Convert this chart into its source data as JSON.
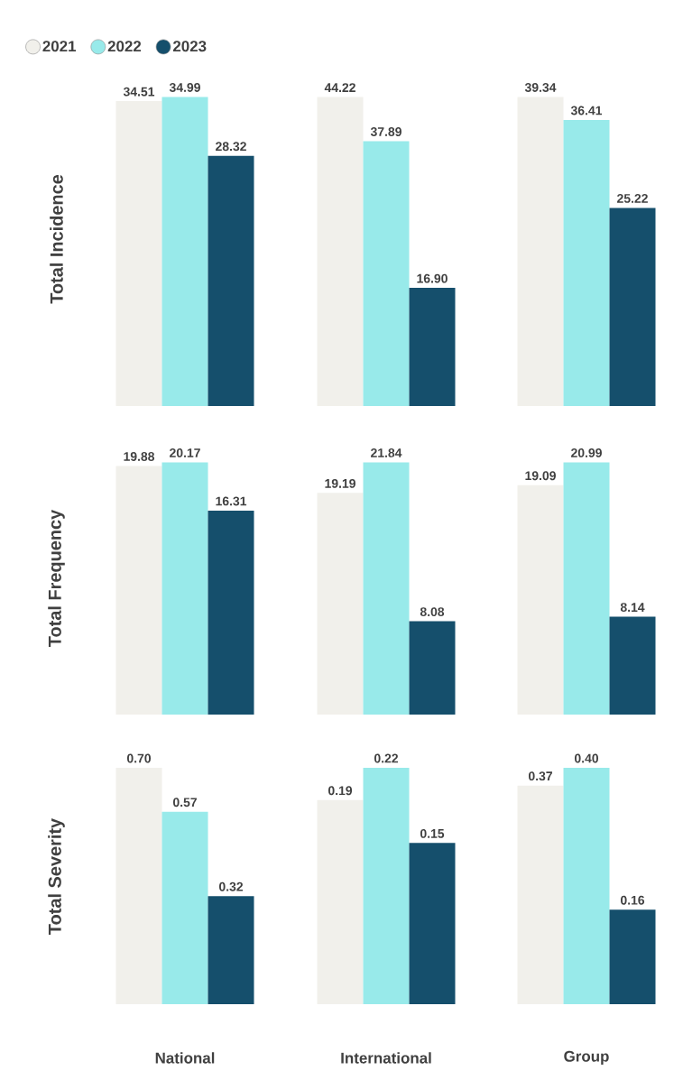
{
  "chart_data": [
    {
      "type": "bar",
      "categories": [
        null
      ],
      "ylabel": "Total Incidence",
      "legend": "top left",
      "series": [
        {
          "name": "2021",
          "color": "#f1f0eb",
          "values": [
            34.51
          ],
          "value_labels": [
            "34.51"
          ]
        },
        {
          "name": "2022",
          "color": "#98eaea",
          "values": [
            34.99
          ],
          "value_labels": [
            "34.99"
          ]
        },
        {
          "name": "2023",
          "color": "#154f6c",
          "values": [
            28.32
          ],
          "value_labels": [
            "28.32"
          ]
        }
      ]
    },
    {
      "type": "bar",
      "categories": [
        null
      ],
      "series": [
        {
          "color": "#f1f0eb",
          "values": [
            44.22
          ],
          "value_labels": [
            "44.22"
          ]
        },
        {
          "color": "#98eaea",
          "values": [
            37.89
          ],
          "value_labels": [
            "37.89"
          ]
        },
        {
          "color": "#154f6c",
          "values": [
            16.9
          ],
          "value_labels": [
            "16.90"
          ]
        }
      ]
    },
    {
      "type": "bar",
      "categories": [
        null
      ],
      "series": [
        {
          "color": "#f1f0eb",
          "values": [
            39.34
          ],
          "value_labels": [
            "39.34"
          ]
        },
        {
          "color": "#98eaea",
          "values": [
            36.41
          ],
          "value_labels": [
            "36.41"
          ]
        },
        {
          "color": "#154f6c",
          "values": [
            25.22
          ],
          "value_labels": [
            "25.22"
          ]
        }
      ]
    },
    {
      "type": "bar",
      "categories": [
        null
      ],
      "ylabel": "Total Frequency",
      "series": [
        {
          "color": "#f1f0eb",
          "values": [
            19.88
          ],
          "value_labels": [
            "19.88"
          ]
        },
        {
          "color": "#98eaea",
          "values": [
            20.17
          ],
          "value_labels": [
            "20.17"
          ]
        },
        {
          "color": "#154f6c",
          "values": [
            16.31
          ],
          "value_labels": [
            "16.31"
          ]
        }
      ]
    },
    {
      "type": "bar",
      "categories": [
        null
      ],
      "series": [
        {
          "color": "#f1f0eb",
          "values": [
            19.19
          ],
          "value_labels": [
            "19.19"
          ]
        },
        {
          "color": "#98eaea",
          "values": [
            21.84
          ],
          "value_labels": [
            "21.84"
          ]
        },
        {
          "color": "#154f6c",
          "values": [
            8.08
          ],
          "value_labels": [
            "8.08"
          ]
        }
      ]
    },
    {
      "type": "bar",
      "categories": [
        null
      ],
      "series": [
        {
          "color": "#f1f0eb",
          "values": [
            19.09
          ],
          "value_labels": [
            "19.09"
          ]
        },
        {
          "color": "#98eaea",
          "values": [
            20.99
          ],
          "value_labels": [
            "20.99"
          ]
        },
        {
          "color": "#154f6c",
          "values": [
            8.14
          ],
          "value_labels": [
            "8.14"
          ]
        }
      ]
    },
    {
      "type": "bar",
      "categories": [
        null
      ],
      "ylabel": "Total Severity",
      "xlabel": "National",
      "series": [
        {
          "color": "#f1f0eb",
          "values": [
            0.7
          ],
          "value_labels": [
            "0.70"
          ]
        },
        {
          "color": "#98eaea",
          "values": [
            0.57
          ],
          "value_labels": [
            "0.57"
          ]
        },
        {
          "color": "#154f6c",
          "values": [
            0.32
          ],
          "value_labels": [
            "0.32"
          ]
        }
      ]
    },
    {
      "type": "bar",
      "categories": [
        null
      ],
      "xlabel": "International",
      "series": [
        {
          "color": "#f1f0eb",
          "values": [
            0.19
          ],
          "value_labels": [
            "0.19"
          ]
        },
        {
          "color": "#98eaea",
          "values": [
            0.22
          ],
          "value_labels": [
            "0.22"
          ]
        },
        {
          "color": "#154f6c",
          "values": [
            0.15
          ],
          "value_labels": [
            "0.15"
          ]
        }
      ]
    },
    {
      "type": "bar",
      "categories": [
        null
      ],
      "xlabel": "Group",
      "series": [
        {
          "color": "#f1f0eb",
          "values": [
            0.37
          ],
          "value_labels": [
            "0.37"
          ]
        },
        {
          "color": "#98eaea",
          "values": [
            0.4
          ],
          "value_labels": [
            "0.40"
          ]
        },
        {
          "color": "#154f6c",
          "values": [
            0.16
          ],
          "value_labels": [
            "0.16"
          ]
        }
      ]
    }
  ]
}
